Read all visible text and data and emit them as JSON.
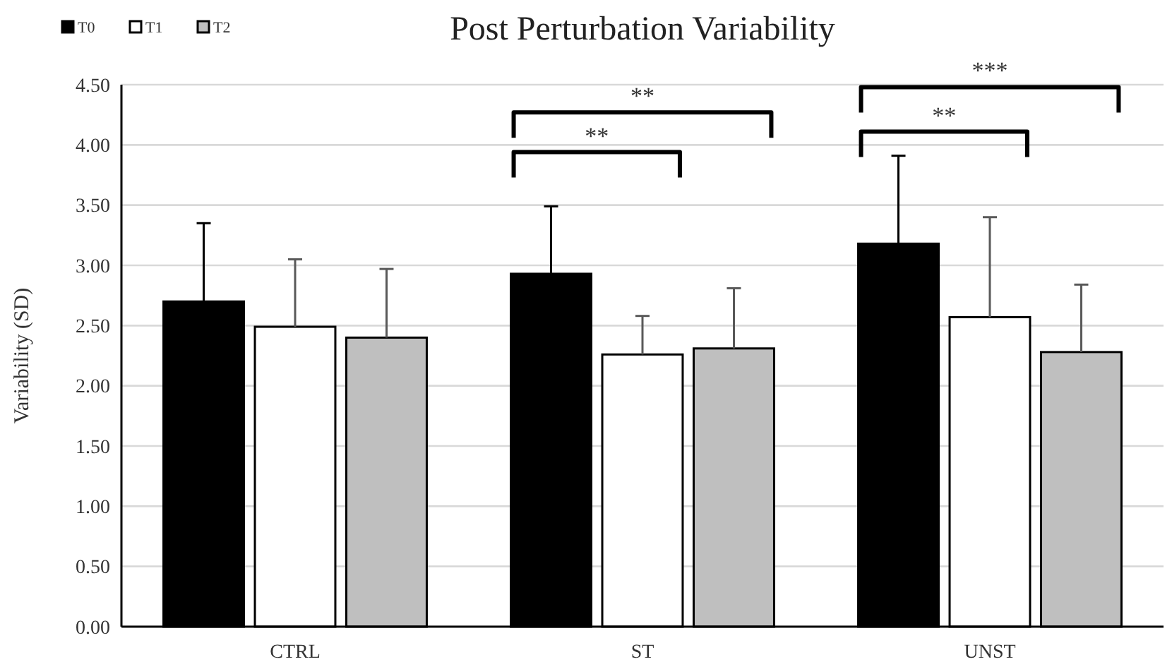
{
  "chart_data": {
    "type": "bar",
    "title": "Post Perturbation Variability",
    "ylabel": "Variability (SD)",
    "categories": [
      "CTRL",
      "ST",
      "UNST"
    ],
    "series": [
      {
        "name": "T0",
        "color": "#000000",
        "values": [
          2.7,
          2.93,
          3.18
        ],
        "errors": [
          [
            2.7,
            3.35
          ],
          [
            2.93,
            3.49
          ],
          [
            3.18,
            3.91
          ]
        ]
      },
      {
        "name": "T1",
        "color": "#ffffff",
        "values": [
          2.49,
          2.26,
          2.57
        ],
        "errors": [
          [
            2.49,
            3.05
          ],
          [
            2.26,
            2.58
          ],
          [
            2.57,
            3.4
          ]
        ]
      },
      {
        "name": "T2",
        "color": "#bfbfbf",
        "values": [
          2.4,
          2.31,
          2.28
        ],
        "errors": [
          [
            2.4,
            2.97
          ],
          [
            2.31,
            2.81
          ],
          [
            2.28,
            2.84
          ]
        ]
      }
    ],
    "ylim": [
      0,
      4.5
    ],
    "yticks": [
      {
        "value": 0,
        "label": "0.00"
      },
      {
        "value": 0.5,
        "label": "0.50"
      },
      {
        "value": 1,
        "label": "1.00"
      },
      {
        "value": 1.5,
        "label": "1.50"
      },
      {
        "value": 2,
        "label": "2.00"
      },
      {
        "value": 2.5,
        "label": "2.50"
      },
      {
        "value": 3,
        "label": "3.00"
      },
      {
        "value": 3.5,
        "label": "3.50"
      },
      {
        "value": 4,
        "label": "4.00"
      },
      {
        "value": 4.5,
        "label": "4.50"
      }
    ],
    "grid": "y",
    "legend": "top left",
    "annotations": [
      "**",
      "**",
      "**",
      "***"
    ]
  }
}
